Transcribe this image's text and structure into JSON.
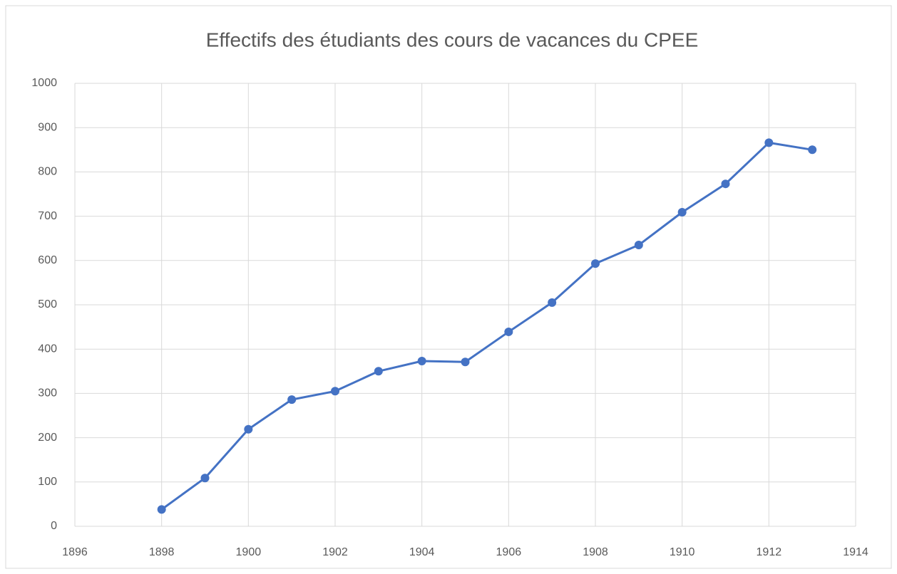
{
  "chart_data": {
    "type": "line",
    "title": "Effectifs des étudiants des cours de vacances du CPEE",
    "x": [
      1898,
      1899,
      1900,
      1901,
      1902,
      1903,
      1904,
      1905,
      1906,
      1907,
      1908,
      1909,
      1910,
      1911,
      1912,
      1913
    ],
    "values": [
      38,
      109,
      219,
      286,
      305,
      350,
      373,
      371,
      439,
      505,
      593,
      635,
      709,
      773,
      866,
      850
    ],
    "color": "#4472c4",
    "xlim": [
      1896,
      1914
    ],
    "xticks": [
      1896,
      1898,
      1900,
      1902,
      1904,
      1906,
      1908,
      1910,
      1912,
      1914
    ],
    "ylim": [
      0,
      1000
    ],
    "yticks": [
      0,
      100,
      200,
      300,
      400,
      500,
      600,
      700,
      800,
      900,
      1000
    ],
    "grid": true,
    "markers": true
  }
}
